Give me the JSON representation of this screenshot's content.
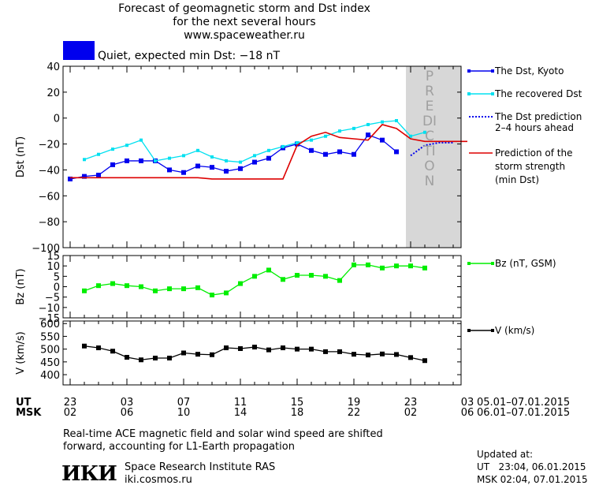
{
  "header": {
    "line1": "Forecast of geomagnetic storm and Dst index",
    "line2": "for the next several hours",
    "line3": "www.spaceweather.ru"
  },
  "status": {
    "text": "Quiet, expected min Dst: −18 nT",
    "color": "#0000ee"
  },
  "legend": {
    "dst_kyoto": "The Dst, Kyoto",
    "dst_recovered": "The recovered Dst",
    "dst_prediction_1": "The Dst prediction",
    "dst_prediction_2": "2–4 hours ahead",
    "storm_1": "Prediction of the",
    "storm_2": "storm strength",
    "storm_3": "(min Dst)",
    "bz": "Bz (nT, GSM)",
    "v": "V (km/s)"
  },
  "prediction_label": "PREDICTION",
  "time_axis": {
    "ut_label": "UT",
    "msk_label": "MSK",
    "ut_ticks": [
      "23",
      "03",
      "07",
      "11",
      "15",
      "19",
      "23",
      "03"
    ],
    "msk_ticks": [
      "02",
      "06",
      "10",
      "14",
      "18",
      "22",
      "02",
      "06"
    ],
    "ut_range": "05.01–07.01.2015",
    "msk_range": "06.01–07.01.2015"
  },
  "footer": {
    "note_1": "Real-time ACE magnetic field and solar wind speed are shifted",
    "note_2": "forward, accounting for L1-Earth propagation",
    "logo": "ИКИ",
    "institute": "Space Research Institute RAS",
    "site": "iki.cosmos.ru",
    "updated_label": "Updated at:",
    "updated_ut": "UT   23:04, 06.01.2015",
    "updated_msk": "MSK 02:04, 07.01.2015"
  },
  "chart_data": [
    {
      "type": "line",
      "ylabel": "Dst (nT)",
      "ylim": [
        -100,
        40
      ],
      "yticks": [
        40,
        20,
        0,
        -20,
        -40,
        -60,
        -80,
        -100
      ],
      "x_unit": "hours since 23 UT",
      "xlim": [
        0,
        28
      ],
      "prediction_start_hour": 24,
      "series": [
        {
          "name": "The Dst, Kyoto",
          "color": "#0000ee",
          "x": [
            0,
            1,
            2,
            3,
            4,
            5,
            6,
            7,
            8,
            9,
            10,
            11,
            12,
            13,
            14,
            15,
            16,
            17,
            18,
            19,
            20,
            21,
            22,
            23
          ],
          "y": [
            -47,
            -45,
            -44,
            -36,
            -33,
            -33,
            -33,
            -40,
            -42,
            -37,
            -38,
            -41,
            -39,
            -34,
            -31,
            -23,
            -20,
            -25,
            -28,
            -26,
            -28,
            -13,
            -17,
            -26
          ]
        },
        {
          "name": "The recovered Dst",
          "color": "#00e0f0",
          "x": [
            1,
            2,
            3,
            4,
            5,
            6,
            7,
            8,
            9,
            10,
            11,
            12,
            13,
            14,
            15,
            16,
            17,
            18,
            19,
            20,
            21,
            22,
            23,
            24,
            25
          ],
          "y": [
            -32,
            -28,
            -24,
            -21,
            -17,
            -33,
            -31,
            -29,
            -25,
            -30,
            -33,
            -34,
            -29,
            -25,
            -22,
            -19,
            -17,
            -14,
            -10,
            -8,
            -5,
            -3,
            -2,
            -14,
            -11
          ]
        },
        {
          "name": "The Dst prediction 2–4 hours ahead",
          "color": "#0000ee",
          "style": "dotted",
          "x": [
            24,
            25,
            26,
            27
          ],
          "y": [
            -29,
            -21,
            -19,
            -19
          ]
        },
        {
          "name": "Prediction of the storm strength (min Dst)",
          "color": "#dd0000",
          "x": [
            0,
            9,
            10,
            15,
            16,
            17,
            18,
            19,
            20,
            21,
            22,
            23,
            24,
            25,
            26,
            27,
            28
          ],
          "y": [
            -46,
            -46,
            -47,
            -47,
            -21,
            -14,
            -11,
            -15,
            -16,
            -17,
            -5,
            -8,
            -16,
            -18,
            -18,
            -18,
            -18
          ]
        }
      ]
    },
    {
      "type": "line",
      "ylabel": "Bz (nT)",
      "ylim": [
        -15,
        15
      ],
      "yticks": [
        15,
        10,
        5,
        0,
        -5,
        -10,
        -15
      ],
      "series": [
        {
          "name": "Bz (nT, GSM)",
          "color": "#00ee00",
          "x": [
            1,
            2,
            3,
            4,
            5,
            6,
            7,
            8,
            9,
            10,
            11,
            12,
            13,
            14,
            15,
            16,
            17,
            18,
            19,
            20,
            21,
            22,
            23,
            24,
            25
          ],
          "y": [
            -2,
            0.5,
            1.5,
            0.5,
            0,
            -2,
            -1,
            -1,
            -0.5,
            -4,
            -3,
            1.5,
            5,
            8,
            3.5,
            5.5,
            5.5,
            5,
            3,
            10.5,
            10.5,
            9,
            10,
            10,
            9
          ]
        }
      ]
    },
    {
      "type": "line",
      "ylabel": "V (km/s)",
      "ylim": [
        360,
        610
      ],
      "yticks": [
        600,
        550,
        500,
        450,
        400
      ],
      "series": [
        {
          "name": "V (km/s)",
          "color": "#000000",
          "x": [
            1,
            2,
            3,
            4,
            5,
            6,
            7,
            8,
            9,
            10,
            11,
            12,
            13,
            14,
            15,
            16,
            17,
            18,
            19,
            20,
            21,
            22,
            23,
            24,
            25
          ],
          "y": [
            512,
            505,
            492,
            468,
            458,
            465,
            465,
            485,
            480,
            478,
            505,
            502,
            508,
            497,
            505,
            500,
            500,
            490,
            490,
            480,
            477,
            481,
            479,
            467,
            455
          ]
        }
      ]
    }
  ]
}
